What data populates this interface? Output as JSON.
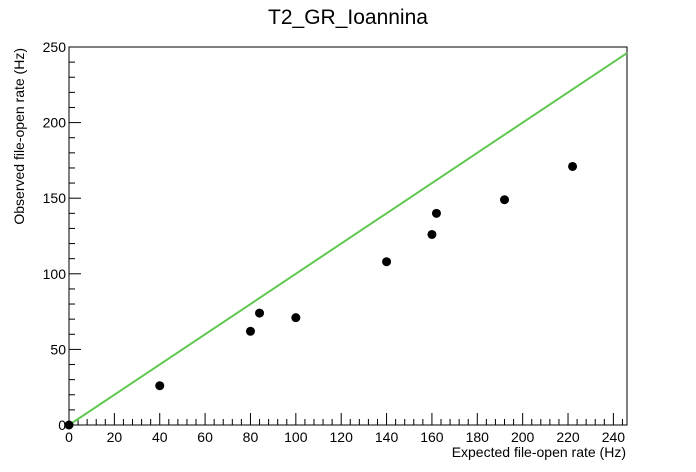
{
  "chart_data": {
    "type": "scatter",
    "title": "T2_GR_Ioannina",
    "xlabel": "Expected file-open rate (Hz)",
    "ylabel": "Observed file-open rate (Hz)",
    "xlim": [
      0,
      246
    ],
    "ylim": [
      0,
      250
    ],
    "x_ticks": [
      0,
      20,
      40,
      60,
      80,
      100,
      120,
      140,
      160,
      180,
      200,
      220,
      240
    ],
    "y_ticks": [
      0,
      50,
      100,
      150,
      200,
      250
    ],
    "grid": false,
    "series": [
      {
        "points": [
          {
            "x": 0,
            "y": 0
          },
          {
            "x": 40,
            "y": 26
          },
          {
            "x": 80,
            "y": 62
          },
          {
            "x": 84,
            "y": 74
          },
          {
            "x": 100,
            "y": 71
          },
          {
            "x": 140,
            "y": 108
          },
          {
            "x": 160,
            "y": 126
          },
          {
            "x": 162,
            "y": 140
          },
          {
            "x": 192,
            "y": 149
          },
          {
            "x": 222,
            "y": 171
          }
        ],
        "color": "#000000"
      }
    ],
    "reference_line": {
      "x": [
        0,
        246
      ],
      "y": [
        0,
        246
      ],
      "color": "#5ec94e"
    }
  }
}
